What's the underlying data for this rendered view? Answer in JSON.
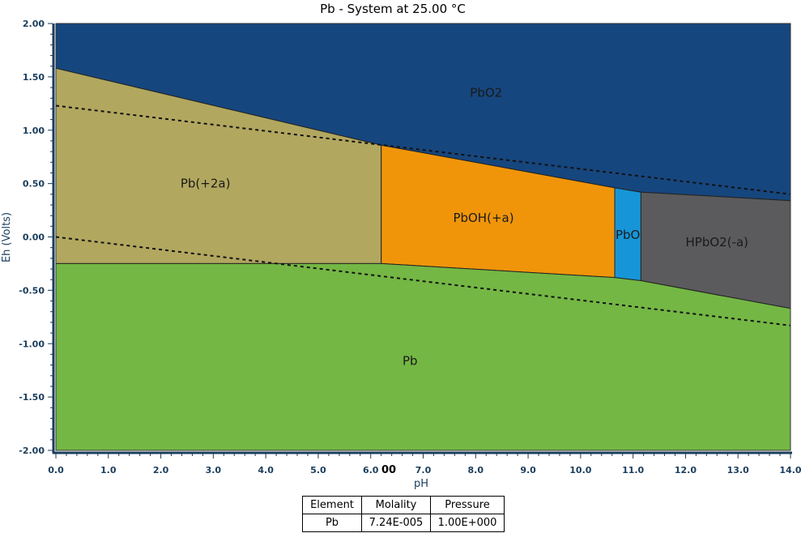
{
  "chart_data": {
    "type": "area",
    "title": "Pb - System at 25.00 °C",
    "xlabel": "pH",
    "ylabel": "Eh (Volts)",
    "xlim": [
      0,
      14
    ],
    "ylim": [
      -2,
      2
    ],
    "x_ticks": [
      "0.0",
      "1.0",
      "2.0",
      "3.0",
      "4.0",
      "5.0",
      "6.0",
      "7.0",
      "8.0",
      "9.0",
      "10.0",
      "11.0",
      "12.0",
      "13.0",
      "14.0"
    ],
    "y_ticks": [
      "2.00",
      "1.50",
      "1.00",
      "0.50",
      "0.00",
      "-0.50",
      "-1.00",
      "-1.50",
      "-2.00"
    ],
    "tick_overlay": "00",
    "grid": false,
    "regions": [
      {
        "name": "PbO2",
        "color": "#16467e",
        "polygon": [
          [
            0,
            2
          ],
          [
            14,
            2
          ],
          [
            14,
            0.34
          ],
          [
            11.15,
            0.42
          ],
          [
            10.65,
            0.46
          ],
          [
            6.2,
            0.86
          ],
          [
            0,
            1.58
          ]
        ],
        "label_at": [
          8.2,
          1.35
        ]
      },
      {
        "name": "Pb(+2a)",
        "color": "#b2a75f",
        "polygon": [
          [
            0,
            1.58
          ],
          [
            6.2,
            0.86
          ],
          [
            6.2,
            -0.25
          ],
          [
            0,
            -0.25
          ]
        ],
        "label_at": [
          2.85,
          0.5
        ]
      },
      {
        "name": "PbOH(+a)",
        "color": "#f0950a",
        "polygon": [
          [
            6.2,
            0.86
          ],
          [
            10.65,
            0.46
          ],
          [
            10.65,
            -0.38
          ],
          [
            6.2,
            -0.25
          ]
        ],
        "label_at": [
          8.15,
          0.18
        ]
      },
      {
        "name": "PbO",
        "color": "#1696d8",
        "polygon": [
          [
            10.65,
            0.46
          ],
          [
            11.15,
            0.42
          ],
          [
            11.15,
            -0.41
          ],
          [
            10.65,
            -0.38
          ]
        ],
        "label_at": [
          10.9,
          0.02
        ]
      },
      {
        "name": "HPbO2(-a)",
        "color": "#5b5b5d",
        "polygon": [
          [
            11.15,
            0.42
          ],
          [
            14,
            0.34
          ],
          [
            14,
            -0.67
          ],
          [
            11.15,
            -0.41
          ]
        ],
        "label_at": [
          12.6,
          -0.05
        ]
      },
      {
        "name": "Pb",
        "color": "#74b744",
        "polygon": [
          [
            0,
            -0.25
          ],
          [
            6.2,
            -0.25
          ],
          [
            10.65,
            -0.38
          ],
          [
            11.15,
            -0.41
          ],
          [
            14,
            -0.67
          ],
          [
            14,
            -2
          ],
          [
            0,
            -2
          ]
        ],
        "label_at": [
          6.75,
          -1.16
        ]
      }
    ],
    "water_lines": [
      {
        "x": [
          0,
          14
        ],
        "y": [
          1.23,
          0.4
        ],
        "style": "dashed"
      },
      {
        "x": [
          0,
          14
        ],
        "y": [
          0.0,
          -0.83
        ],
        "style": "dashed"
      }
    ]
  },
  "info_table": {
    "headers": [
      "Element",
      "Molality",
      "Pressure"
    ],
    "row": [
      "Pb",
      "7.24E-005",
      "1.00E+000"
    ]
  },
  "colors": {
    "axis": "#1a3d5c",
    "boundary": "#222222"
  }
}
